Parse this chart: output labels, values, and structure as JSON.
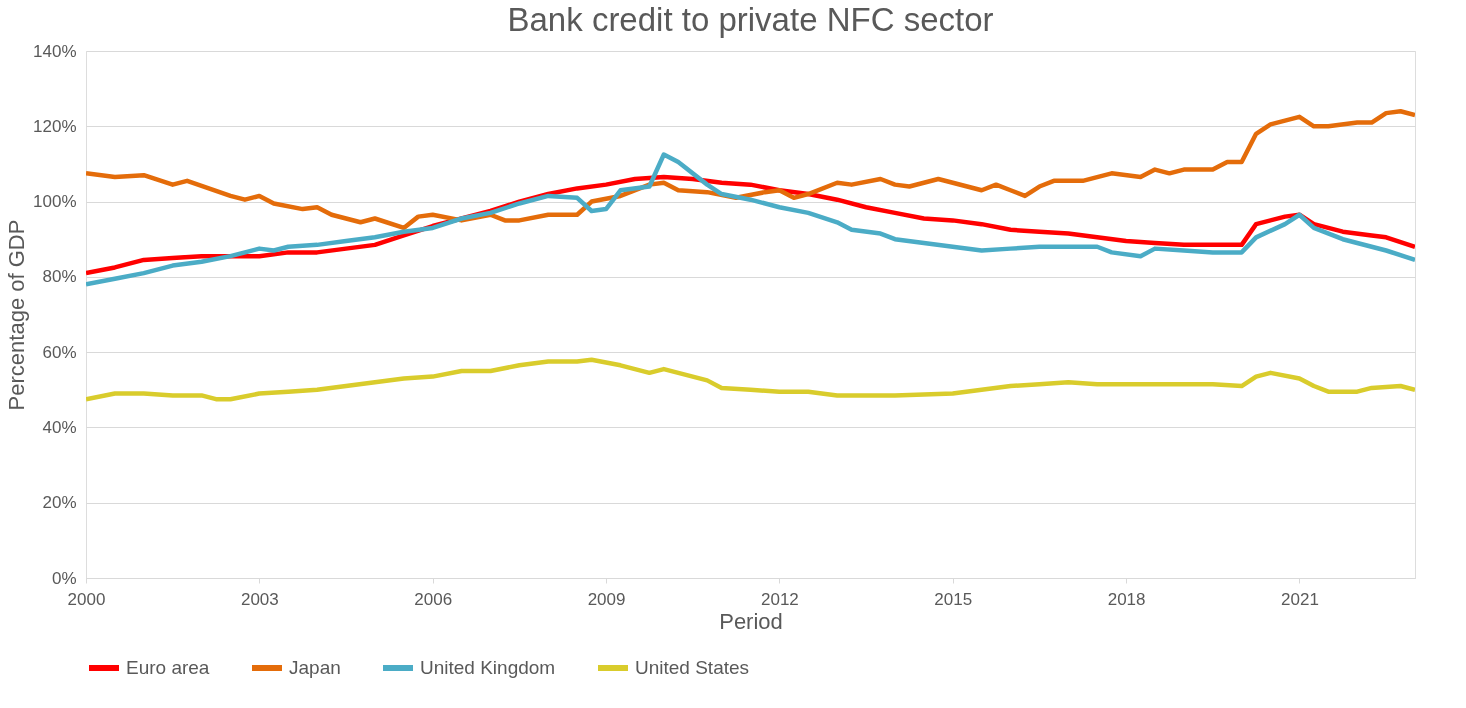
{
  "chart_data": {
    "type": "line",
    "title": "Bank credit to private NFC sector",
    "xlabel": "Period",
    "ylabel": "Percentage of GDP",
    "xlim": [
      2000,
      2023
    ],
    "xticks": [
      2000,
      2003,
      2006,
      2009,
      2012,
      2015,
      2018,
      2021
    ],
    "ylim": [
      0,
      140
    ],
    "yticks": [
      {
        "value": 0,
        "label": "0%"
      },
      {
        "value": 20,
        "label": "20%"
      },
      {
        "value": 40,
        "label": "40%"
      },
      {
        "value": 60,
        "label": "60%"
      },
      {
        "value": 80,
        "label": "80%"
      },
      {
        "value": 100,
        "label": "100%"
      },
      {
        "value": 120,
        "label": "120%"
      },
      {
        "value": 140,
        "label": "140%"
      }
    ],
    "grid": "y",
    "legend": "bottom",
    "marker": "none",
    "line_style": "solid",
    "series": [
      {
        "name": "Euro area",
        "color": "#ff0000",
        "x": [
          2000,
          2000.5,
          2001,
          2001.5,
          2002,
          2002.5,
          2003,
          2003.5,
          2004,
          2004.5,
          2005,
          2005.5,
          2006,
          2006.5,
          2007,
          2007.5,
          2008,
          2008.5,
          2009,
          2009.5,
          2010,
          2010.5,
          2011,
          2011.5,
          2012,
          2012.5,
          2013,
          2013.5,
          2014,
          2014.5,
          2015,
          2015.5,
          2016,
          2016.5,
          2017,
          2017.5,
          2018,
          2018.5,
          2019,
          2019.5,
          2020,
          2020.25,
          2020.75,
          2021,
          2021.25,
          2021.75,
          2022.25,
          2022.5,
          2023
        ],
        "values": [
          81,
          82.5,
          84.5,
          85,
          85.5,
          85.5,
          85.5,
          86.5,
          86.5,
          87.5,
          88.5,
          91,
          93.5,
          95.5,
          97.5,
          100,
          102,
          103.5,
          104.5,
          106,
          106.5,
          106,
          105,
          104.5,
          103,
          102,
          100.5,
          98.5,
          97,
          95.5,
          95,
          94,
          92.5,
          92,
          91.5,
          90.5,
          89.5,
          89,
          88.5,
          88.5,
          88.5,
          94,
          96,
          96.5,
          94,
          92,
          91,
          90.5,
          88
        ]
      },
      {
        "name": "Japan",
        "color": "#e46c0a",
        "x": [
          2000,
          2000.5,
          2001,
          2001.5,
          2001.75,
          2002.5,
          2002.75,
          2003,
          2003.25,
          2003.75,
          2004,
          2004.25,
          2004.75,
          2005,
          2005.5,
          2005.75,
          2006,
          2006.5,
          2007,
          2007.25,
          2007.5,
          2008,
          2008.5,
          2008.75,
          2009.25,
          2009.75,
          2010,
          2010.25,
          2010.75,
          2011.25,
          2011.75,
          2012,
          2012.25,
          2012.5,
          2013,
          2013.25,
          2013.75,
          2014,
          2014.25,
          2014.75,
          2015.25,
          2015.5,
          2015.75,
          2016,
          2016.25,
          2016.5,
          2016.75,
          2017.25,
          2017.75,
          2018.25,
          2018.5,
          2018.75,
          2019,
          2019.5,
          2019.75,
          2020,
          2020.25,
          2020.5,
          2020.75,
          2021,
          2021.25,
          2021.5,
          2022,
          2022.25,
          2022.5,
          2022.75,
          2023
        ],
        "values": [
          107.5,
          106.5,
          107,
          104.5,
          105.5,
          101.5,
          100.5,
          101.5,
          99.5,
          98,
          98.5,
          96.5,
          94.5,
          95.5,
          93,
          96,
          96.5,
          95,
          96.5,
          95,
          95,
          96.5,
          96.5,
          100,
          101.5,
          104.5,
          105,
          103,
          102.5,
          101,
          102.5,
          103,
          101,
          102,
          105,
          104.5,
          106,
          104.5,
          104,
          106,
          104,
          103,
          104.5,
          103,
          101.5,
          104,
          105.5,
          105.5,
          107.5,
          106.5,
          108.5,
          107.5,
          108.5,
          108.5,
          110.5,
          110.5,
          118,
          120.5,
          121.5,
          122.5,
          120,
          120,
          121,
          121,
          123.5,
          124,
          123
        ]
      },
      {
        "name": "United Kingdom",
        "color": "#4bacc6",
        "x": [
          2000,
          2000.5,
          2001,
          2001.5,
          2002,
          2002.5,
          2003,
          2003.25,
          2003.5,
          2004,
          2004.5,
          2005,
          2005.5,
          2006,
          2006.5,
          2007,
          2007.5,
          2008,
          2008.5,
          2008.75,
          2009,
          2009.25,
          2009.75,
          2010,
          2010.25,
          2010.75,
          2011,
          2011.5,
          2012,
          2012.5,
          2013,
          2013.25,
          2013.75,
          2014,
          2014.5,
          2015,
          2015.5,
          2016,
          2016.5,
          2017,
          2017.5,
          2017.75,
          2018.25,
          2018.5,
          2019,
          2019.5,
          2020,
          2020.25,
          2020.75,
          2021,
          2021.25,
          2021.75,
          2022.25,
          2022.5,
          2023
        ],
        "values": [
          78,
          79.5,
          81,
          83,
          84,
          85.5,
          87.5,
          87,
          88,
          88.5,
          89.5,
          90.5,
          92,
          93,
          95.5,
          97,
          99.5,
          101.5,
          101,
          97.5,
          98,
          103,
          104,
          112.5,
          110.5,
          104.5,
          102,
          100.5,
          98.5,
          97,
          94.5,
          92.5,
          91.5,
          90,
          89,
          88,
          87,
          87.5,
          88,
          88,
          88,
          86.5,
          85.5,
          87.5,
          87,
          86.5,
          86.5,
          90.5,
          94,
          96.5,
          93,
          90,
          88,
          87,
          84.5
        ]
      },
      {
        "name": "United States",
        "color": "#d9cc2c",
        "x": [
          2000,
          2000.5,
          2001,
          2001.5,
          2002,
          2002.25,
          2002.5,
          2003,
          2003.5,
          2004,
          2004.5,
          2005,
          2005.5,
          2006,
          2006.5,
          2007,
          2007.5,
          2008,
          2008.5,
          2008.75,
          2009.25,
          2009.75,
          2010,
          2010.25,
          2010.75,
          2011,
          2011.5,
          2012,
          2012.5,
          2013,
          2014,
          2015,
          2015.5,
          2016,
          2016.5,
          2017,
          2017.5,
          2018,
          2018.5,
          2019,
          2019.5,
          2020,
          2020.25,
          2020.5,
          2021,
          2021.25,
          2021.5,
          2022,
          2022.25,
          2022.75,
          2023
        ],
        "values": [
          47.5,
          49,
          49,
          48.5,
          48.5,
          47.5,
          47.5,
          49,
          49.5,
          50,
          51,
          52,
          53,
          53.5,
          55,
          55,
          56.5,
          57.5,
          57.5,
          58,
          56.5,
          54.5,
          55.5,
          54.5,
          52.5,
          50.5,
          50,
          49.5,
          49.5,
          48.5,
          48.5,
          49,
          50,
          51,
          51.5,
          52,
          51.5,
          51.5,
          51.5,
          51.5,
          51.5,
          51,
          53.5,
          54.5,
          53,
          51,
          49.5,
          49.5,
          50.5,
          51,
          50
        ]
      }
    ]
  }
}
